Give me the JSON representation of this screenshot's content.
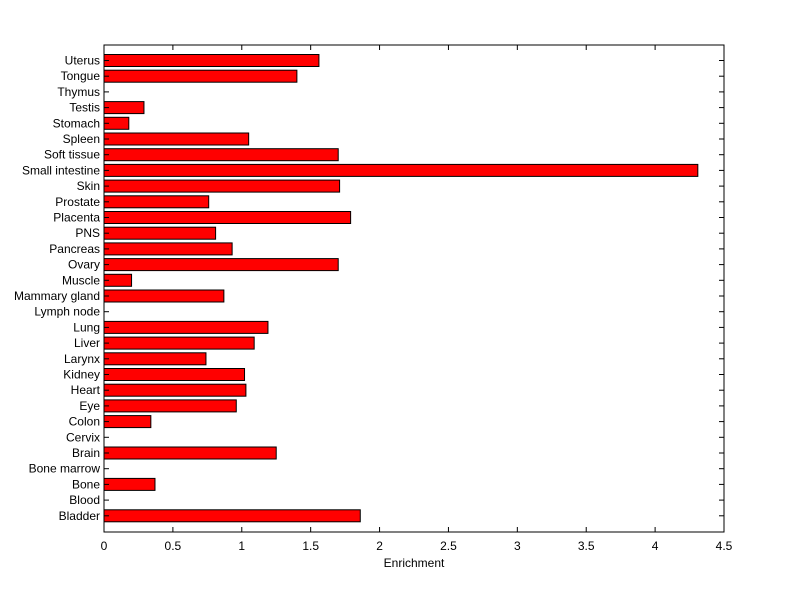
{
  "chart_data": {
    "type": "bar",
    "orientation": "horizontal",
    "title": "",
    "xlabel": "Enrichment",
    "ylabel": "",
    "xlim": [
      0,
      4.5
    ],
    "xticks": [
      0,
      0.5,
      1,
      1.5,
      2,
      2.5,
      3,
      3.5,
      4,
      4.5
    ],
    "xtick_labels": [
      "0",
      "0.5",
      "1",
      "1.5",
      "2",
      "2.5",
      "3",
      "3.5",
      "4",
      "4.5"
    ],
    "grid": false,
    "legend": "none",
    "bar_color": "#ff0000",
    "categories": [
      "Uterus",
      "Tongue",
      "Thymus",
      "Testis",
      "Stomach",
      "Spleen",
      "Soft tissue",
      "Small intestine",
      "Skin",
      "Prostate",
      "Placenta",
      "PNS",
      "Pancreas",
      "Ovary",
      "Muscle",
      "Mammary gland",
      "Lymph node",
      "Lung",
      "Liver",
      "Larynx",
      "Kidney",
      "Heart",
      "Eye",
      "Colon",
      "Cervix",
      "Brain",
      "Bone marrow",
      "Bone",
      "Blood",
      "Bladder"
    ],
    "values": [
      1.56,
      1.4,
      0,
      0.29,
      0.18,
      1.05,
      1.7,
      4.31,
      1.71,
      0.76,
      1.79,
      0.81,
      0.93,
      1.7,
      0.2,
      0.87,
      0,
      1.19,
      1.09,
      0.74,
      1.02,
      1.03,
      0.96,
      0.34,
      0,
      1.25,
      0,
      0.37,
      0,
      1.86
    ]
  }
}
